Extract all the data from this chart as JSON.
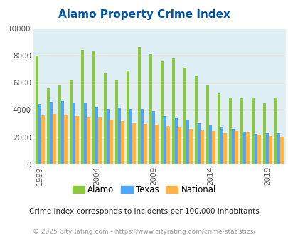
{
  "title": "Alamo Property Crime Index",
  "subtitle": "Crime Index corresponds to incidents per 100,000 inhabitants",
  "footer": "© 2025 CityRating.com - https://www.cityrating.com/crime-statistics/",
  "years": [
    1999,
    2000,
    2001,
    2002,
    2003,
    2004,
    2005,
    2006,
    2007,
    2008,
    2009,
    2010,
    2011,
    2012,
    2013,
    2014,
    2015,
    2016,
    2017,
    2018,
    2019,
    2020
  ],
  "alamo": [
    8000,
    5600,
    5800,
    6200,
    8400,
    8300,
    6700,
    6200,
    6900,
    8600,
    8100,
    7550,
    7800,
    7100,
    6500,
    5800,
    5200,
    4900,
    4850,
    4900,
    4500,
    4900
  ],
  "texas": [
    4450,
    4600,
    4650,
    4550,
    4550,
    4250,
    4100,
    4200,
    4050,
    4050,
    3900,
    3550,
    3400,
    3300,
    3050,
    2850,
    2750,
    2600,
    2400,
    2250,
    2300,
    2300
  ],
  "national": [
    3600,
    3700,
    3650,
    3550,
    3450,
    3450,
    3300,
    3200,
    3050,
    3000,
    2900,
    2800,
    2700,
    2600,
    2500,
    2450,
    2300,
    2450,
    2350,
    2200,
    2100,
    2050
  ],
  "alamo_color": "#8dc63f",
  "texas_color": "#4da6ff",
  "national_color": "#ffb347",
  "bg_color": "#ddeef4",
  "ylim": [
    0,
    10000
  ],
  "yticks": [
    0,
    2000,
    4000,
    6000,
    8000,
    10000
  ],
  "xticks": [
    1999,
    2004,
    2009,
    2014,
    2019
  ],
  "title_color": "#0055aa",
  "subtitle_color": "#222222",
  "footer_color": "#999999",
  "title_fontsize": 11,
  "subtitle_fontsize": 7.5,
  "footer_fontsize": 6.5
}
